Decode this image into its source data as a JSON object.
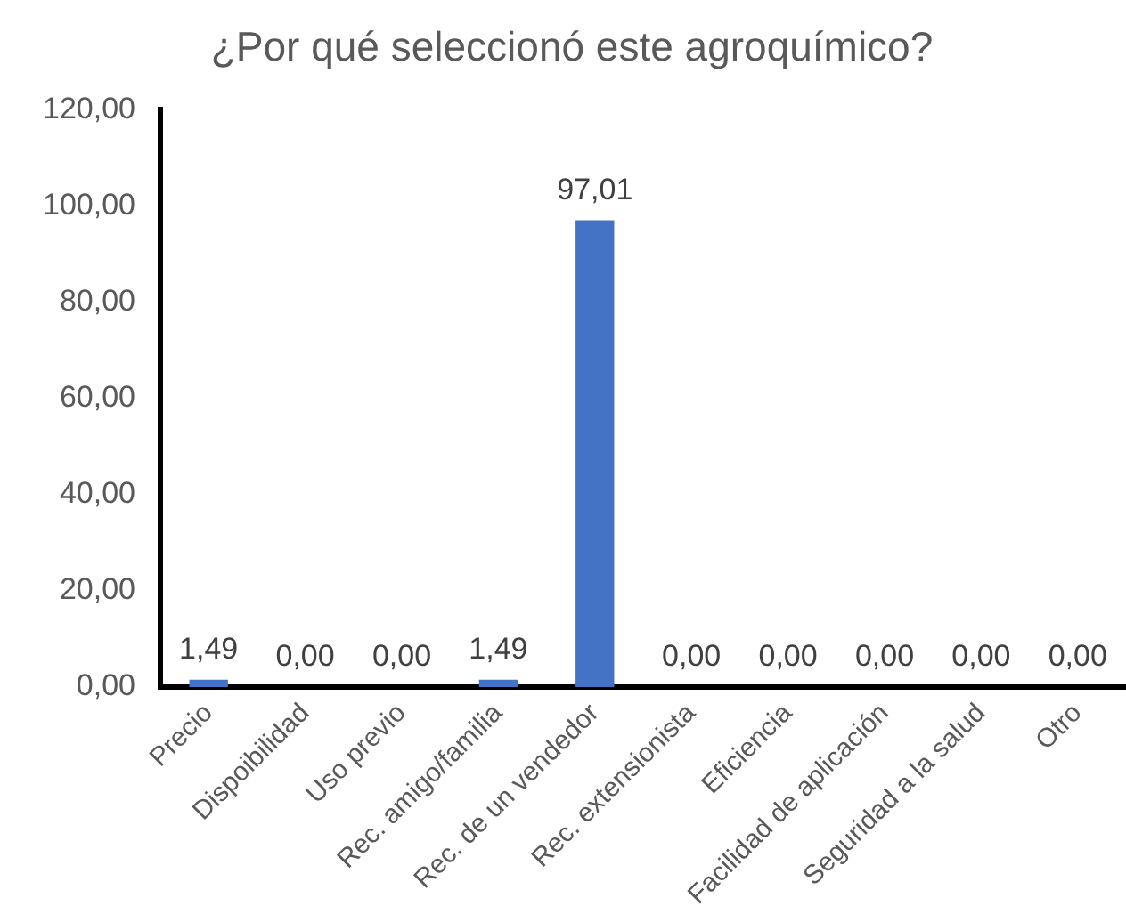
{
  "chart_data": {
    "type": "bar",
    "title": "¿Por qué seleccionó este agroquímico?",
    "categories": [
      "Precio",
      "Dispoibilidad",
      "Uso previo",
      "Rec. amigo/familia",
      "Rec. de un vendedor",
      "Rec. extensionista",
      "Eficiencia",
      "Facilidad de aplicación",
      "Seguridad a la salud",
      "Otro"
    ],
    "values": [
      1.49,
      0,
      0,
      1.49,
      97.01,
      0,
      0,
      0,
      0,
      0
    ],
    "value_labels": [
      "1,49",
      "0,00",
      "0,00",
      "1,49",
      "97,01",
      "0,00",
      "0,00",
      "0,00",
      "0,00",
      "0,00"
    ],
    "color": "#4472c4",
    "ylim": [
      0,
      120
    ],
    "yticks": [
      {
        "value": 0,
        "label": "0,00"
      },
      {
        "value": 20,
        "label": "20,00"
      },
      {
        "value": 40,
        "label": "40,00"
      },
      {
        "value": 60,
        "label": "60,00"
      },
      {
        "value": 80,
        "label": "80,00"
      },
      {
        "value": 100,
        "label": "100,00"
      },
      {
        "value": 120,
        "label": "120,00"
      }
    ],
    "grid": false,
    "legend": false
  }
}
